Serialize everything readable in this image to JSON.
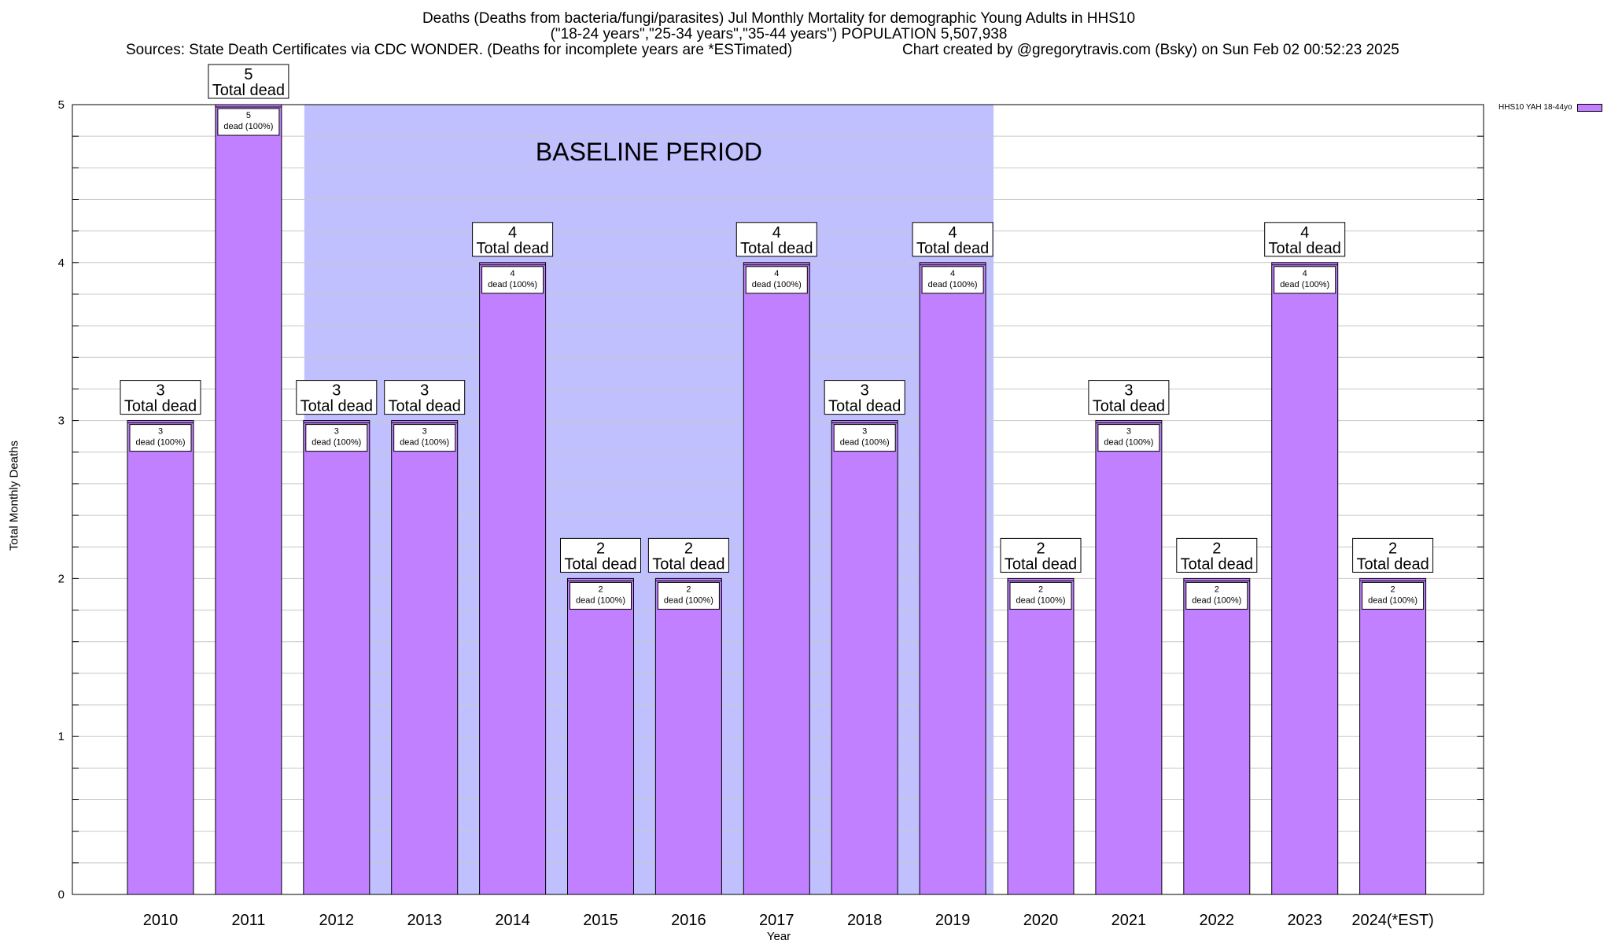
{
  "header": {
    "line1": "Deaths (Deaths from bacteria/fungi/parasites) Jul Monthly Mortality for demographic Young Adults in HHS10",
    "line2": "(\"18-24 years\",\"25-34 years\",\"35-44 years\") POPULATION 5,507,938",
    "sources": "Sources: State Death Certificates via CDC WONDER. (Deaths for incomplete years are *ESTimated)",
    "credit": "Chart created by @gregorytravis.com (Bsky) on Sun Feb 02 00:52:23 2025"
  },
  "chart_data": {
    "type": "bar",
    "title": "Deaths (Deaths from bacteria/fungi/parasites) Jul Monthly Mortality for demographic Young Adults in HHS10",
    "xlabel": "Year",
    "ylabel": "Total Monthly Deaths",
    "ylim": [
      0,
      5
    ],
    "yticks": [
      0,
      1,
      2,
      3,
      4,
      5
    ],
    "categories": [
      "2010",
      "2011",
      "2012",
      "2013",
      "2014",
      "2015",
      "2016",
      "2017",
      "2018",
      "2019",
      "2020",
      "2021",
      "2022",
      "2023",
      "2024(*EST)"
    ],
    "series": [
      {
        "name": "HHS10 YAH 18-44yo",
        "color": "#c080ff",
        "values": [
          3,
          5,
          3,
          3,
          4,
          2,
          2,
          4,
          3,
          4,
          2,
          3,
          2,
          4,
          2
        ]
      }
    ],
    "total_label_suffix": "Total dead",
    "inner_label_suffix": "dead (100%)",
    "baseline": {
      "label": "BASELINE PERIOD",
      "from": "2012",
      "to": "2019",
      "color": "#c0c0ff"
    },
    "grid": true,
    "legend_position": "top-right"
  }
}
